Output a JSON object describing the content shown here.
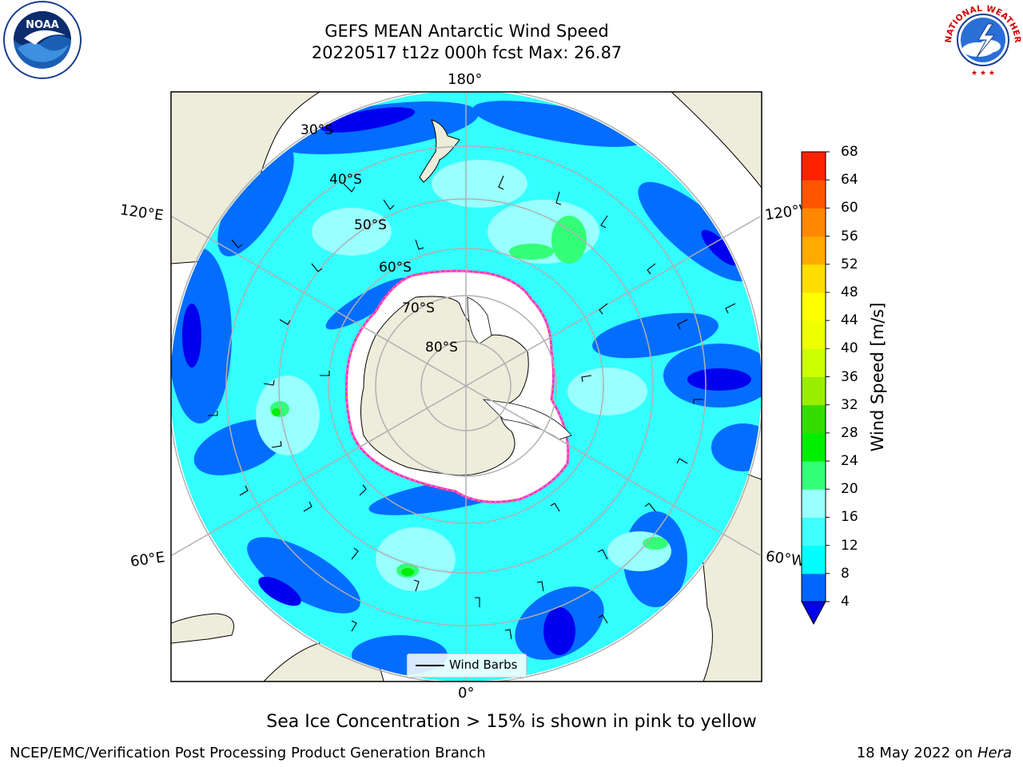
{
  "header": {
    "title_line1": "GEFS MEAN Antarctic Wind Speed",
    "title_line2": "20220517 t12z 000h fcst   Max: 26.87"
  },
  "logos": {
    "left": {
      "name": "noaa-logo",
      "text": "NOAA"
    },
    "right": {
      "name": "national-weather-service-logo",
      "text": "NATIONAL WEATHER SERVICE"
    }
  },
  "map": {
    "projection": "south-polar-stereographic",
    "lon_labels": {
      "top": "180°",
      "bottom": "0°",
      "upper_left": "120°E",
      "upper_right": "120°W",
      "lower_left": "60°E",
      "lower_right": "60°W"
    },
    "lat_labels": [
      "30°S",
      "40°S",
      "50°S",
      "60°S",
      "70°S",
      "80°S"
    ],
    "legend": {
      "label": "Wind Barbs"
    },
    "colors": {
      "land": "#eeecdb",
      "ice": "#ffffff",
      "ice_edge": "#ff33cc",
      "graticule": "#b0b0b0"
    }
  },
  "colorbar": {
    "label": "Wind Speed [m/s]",
    "ticks": [
      "4",
      "8",
      "12",
      "16",
      "20",
      "24",
      "28",
      "32",
      "36",
      "40",
      "44",
      "48",
      "52",
      "56",
      "60",
      "64",
      "68"
    ],
    "colors": [
      "#0066ff",
      "#00ffff",
      "#40ffff",
      "#99ffff",
      "#33ff77",
      "#00ee00",
      "#33dd00",
      "#99ee00",
      "#ccff00",
      "#eeff00",
      "#ffff00",
      "#ffdd00",
      "#ffaa00",
      "#ff8800",
      "#ff5500",
      "#ff2200"
    ],
    "under_color": "#0000ee"
  },
  "notes": {
    "sea_ice": "Sea Ice Concentration > 15% is shown in pink to yellow"
  },
  "footer": {
    "left": "NCEP/EMC/Verification Post Processing Product Generation Branch",
    "date": "18 May 2022 on ",
    "machine": "Hera"
  }
}
